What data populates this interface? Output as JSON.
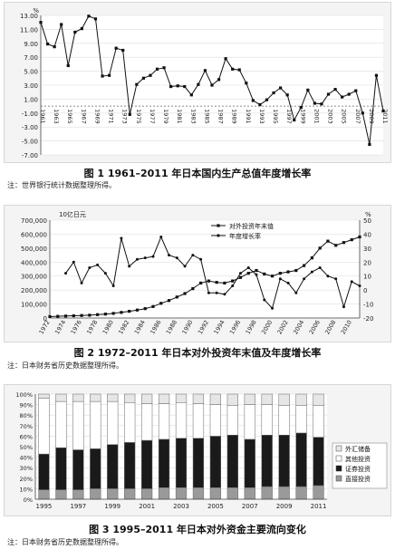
{
  "chart_data": [
    {
      "type": "line",
      "caption": "图 1  1961–2011 年日本国内生产总值年度增长率",
      "note": "注：世界银行统计数据整理所得。",
      "ylabel": "%",
      "ylim": [
        -7,
        13
      ],
      "yticks": [
        "13.00",
        "11.00",
        "9.00",
        "7.00",
        "5.00",
        "3.00",
        "1.00",
        "-1.00",
        "-3.00",
        "-5.00",
        "-7.00"
      ],
      "xticks": [
        "1961",
        "1963",
        "1965",
        "1967",
        "1969",
        "1971",
        "1973",
        "1975",
        "1977",
        "1979",
        "1981",
        "1983",
        "1985",
        "1987",
        "1989",
        "1991",
        "1993",
        "1995",
        "1997",
        "1999",
        "2001",
        "2003",
        "2005",
        "2007",
        "2009",
        "2011"
      ],
      "x": [
        1961,
        1962,
        1963,
        1964,
        1965,
        1966,
        1967,
        1968,
        1969,
        1970,
        1971,
        1972,
        1973,
        1974,
        1975,
        1976,
        1977,
        1978,
        1979,
        1980,
        1981,
        1982,
        1983,
        1984,
        1985,
        1986,
        1987,
        1988,
        1989,
        1990,
        1991,
        1992,
        1993,
        1994,
        1995,
        1996,
        1997,
        1998,
        1999,
        2000,
        2001,
        2002,
        2003,
        2004,
        2005,
        2006,
        2007,
        2008,
        2009,
        2010,
        2011
      ],
      "values": [
        12.0,
        8.9,
        8.5,
        11.7,
        5.8,
        10.6,
        11.1,
        12.9,
        12.5,
        4.3,
        4.4,
        8.3,
        8.0,
        -1.2,
        3.1,
        4.0,
        4.4,
        5.3,
        5.5,
        2.8,
        2.9,
        2.8,
        1.6,
        3.1,
        5.1,
        3.0,
        3.8,
        6.8,
        5.3,
        5.2,
        3.3,
        0.8,
        0.2,
        0.9,
        1.9,
        2.6,
        1.6,
        -2.0,
        -0.2,
        2.3,
        0.4,
        0.3,
        1.7,
        2.4,
        1.3,
        1.7,
        2.2,
        -1.0,
        -5.5,
        4.4,
        -0.7
      ]
    },
    {
      "type": "line",
      "caption": "图 2  1972–2011 年日本对外投资年末值及年度增长率",
      "note": "注：日本财务省历史数据整理所得。",
      "left_unit": "10亿日元",
      "right_unit": "%",
      "yleft_ticks": [
        "700,000",
        "600,000",
        "500,000",
        "400,000",
        "300,000",
        "200,000",
        "100,000",
        "0"
      ],
      "yright_ticks": [
        "50",
        "40",
        "30",
        "20",
        "10",
        "0",
        "-10",
        "-20"
      ],
      "ylim_left": [
        0,
        700000
      ],
      "ylim_right": [
        -20,
        50
      ],
      "xticks": [
        "1972",
        "1974",
        "1976",
        "1978",
        "1980",
        "1982",
        "1984",
        "1986",
        "1988",
        "1990",
        "1992",
        "1994",
        "1996",
        "1998",
        "2000",
        "2002",
        "2004",
        "2006",
        "2008",
        "2010"
      ],
      "x": [
        1972,
        1973,
        1974,
        1975,
        1976,
        1977,
        1978,
        1979,
        1980,
        1981,
        1982,
        1983,
        1984,
        1985,
        1986,
        1987,
        1988,
        1989,
        1990,
        1991,
        1992,
        1993,
        1994,
        1995,
        1996,
        1997,
        1998,
        1999,
        2000,
        2001,
        2002,
        2003,
        2004,
        2005,
        2006,
        2007,
        2008,
        2009,
        2010,
        2011
      ],
      "series": [
        {
          "name": "对外投资年末值",
          "axis": "left",
          "values": [
            10000,
            12000,
            14000,
            16000,
            18000,
            20000,
            24000,
            28000,
            33000,
            40000,
            48000,
            57000,
            67000,
            82000,
            105000,
            125000,
            150000,
            175000,
            210000,
            250000,
            265000,
            255000,
            250000,
            265000,
            290000,
            320000,
            340000,
            315000,
            300000,
            320000,
            330000,
            340000,
            375000,
            430000,
            500000,
            550000,
            520000,
            540000,
            560000,
            580000
          ]
        },
        {
          "name": "年度增长率",
          "axis": "right",
          "values": [
            null,
            null,
            12,
            20,
            5,
            16,
            18,
            12,
            3,
            37,
            17,
            22,
            23,
            24,
            38,
            25,
            23,
            17,
            25,
            22,
            -2,
            -2,
            -3,
            3,
            12,
            16,
            11,
            -7,
            -13,
            8,
            5,
            -2,
            8,
            13,
            16,
            10,
            8,
            -12,
            6,
            3
          ]
        }
      ]
    },
    {
      "type": "bar",
      "stacked": true,
      "caption": "图 3  1995–2011 年日本对外资金主要流向变化",
      "note": "注：日本财务省历史数据整理所得。",
      "yticks": [
        "100%",
        "90%",
        "80%",
        "70%",
        "60%",
        "50%",
        "40%",
        "30%",
        "20%",
        "10%",
        "0%"
      ],
      "xticks": [
        "1995",
        "1997",
        "1999",
        "2001",
        "2003",
        "2005",
        "2007",
        "2009",
        "2011"
      ],
      "categories": [
        "1995",
        "1996",
        "1997",
        "1998",
        "1999",
        "2000",
        "2001",
        "2002",
        "2003",
        "2004",
        "2005",
        "2006",
        "2007",
        "2008",
        "2009",
        "2010",
        "2011"
      ],
      "legend_position": "right",
      "series": [
        {
          "name": "直接投资",
          "values": [
            9,
            9,
            9,
            10,
            10,
            10,
            10,
            11,
            11,
            11,
            11,
            11,
            11,
            12,
            12,
            12,
            13
          ],
          "color": "#9a9a9a"
        },
        {
          "name": "证券投资",
          "values": [
            34,
            40,
            38,
            38,
            42,
            44,
            46,
            46,
            47,
            47,
            49,
            50,
            46,
            49,
            49,
            51,
            46
          ],
          "color": "#1a1a1a"
        },
        {
          "name": "其他投资",
          "values": [
            53,
            44,
            46,
            45,
            41,
            38,
            35,
            34,
            34,
            33,
            30,
            28,
            33,
            29,
            28,
            26,
            30
          ],
          "color": "#ffffff"
        },
        {
          "name": "外汇储备",
          "values": [
            4,
            7,
            7,
            7,
            7,
            8,
            9,
            9,
            8,
            9,
            10,
            11,
            10,
            10,
            11,
            11,
            11
          ],
          "color": "#e6e6e6"
        }
      ]
    }
  ]
}
